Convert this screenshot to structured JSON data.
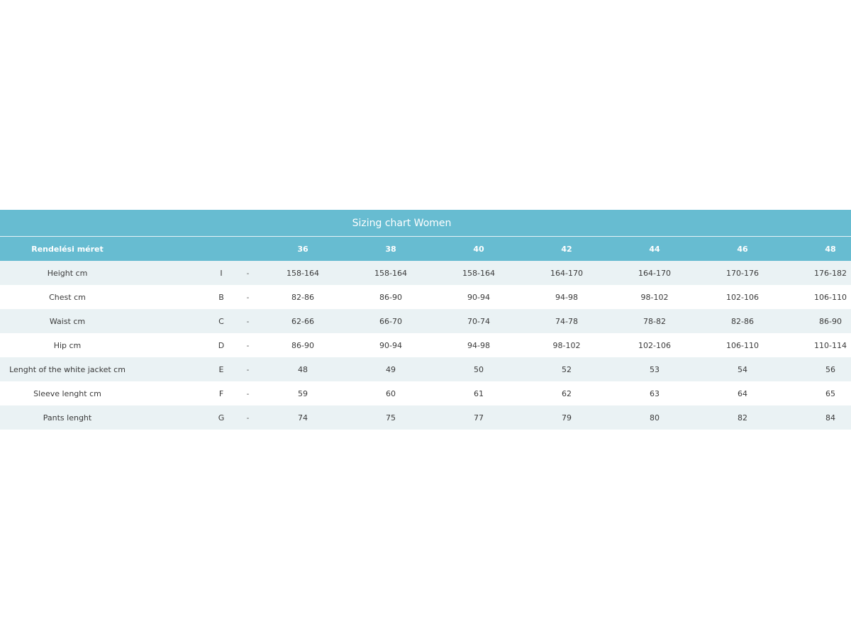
{
  "title": "Sizing chart Women",
  "header": {
    "label": "Rendelési méret",
    "sizes": [
      "36",
      "38",
      "40",
      "42",
      "44",
      "46",
      "48"
    ]
  },
  "rows": [
    {
      "label": "Height cm",
      "code": "I",
      "dash": "-",
      "values": [
        "158-164",
        "158-164",
        "158-164",
        "164-170",
        "164-170",
        "170-176",
        "176-182"
      ]
    },
    {
      "label": "Chest cm",
      "code": "B",
      "dash": "-",
      "values": [
        "82-86",
        "86-90",
        "90-94",
        "94-98",
        "98-102",
        "102-106",
        "106-110"
      ]
    },
    {
      "label": "Waist cm",
      "code": "C",
      "dash": "-",
      "values": [
        "62-66",
        "66-70",
        "70-74",
        "74-78",
        "78-82",
        "82-86",
        "86-90"
      ]
    },
    {
      "label": "Hip cm",
      "code": "D",
      "dash": "-",
      "values": [
        "86-90",
        "90-94",
        "94-98",
        "98-102",
        "102-106",
        "106-110",
        "110-114"
      ]
    },
    {
      "label": "Lenght of the white jacket cm",
      "code": "E",
      "dash": "-",
      "values": [
        "48",
        "49",
        "50",
        "52",
        "53",
        "54",
        "56"
      ]
    },
    {
      "label": "Sleeve lenght cm",
      "code": "F",
      "dash": "-",
      "values": [
        "59",
        "60",
        "61",
        "62",
        "63",
        "64",
        "65"
      ]
    },
    {
      "label": "Pants lenght",
      "code": "G",
      "dash": "-",
      "values": [
        "74",
        "75",
        "77",
        "79",
        "80",
        "82",
        "84"
      ]
    }
  ],
  "colors": {
    "header_bg": "#67bcd1",
    "stripe_bg": "#eaf2f4",
    "text": "#3a3a3a"
  }
}
